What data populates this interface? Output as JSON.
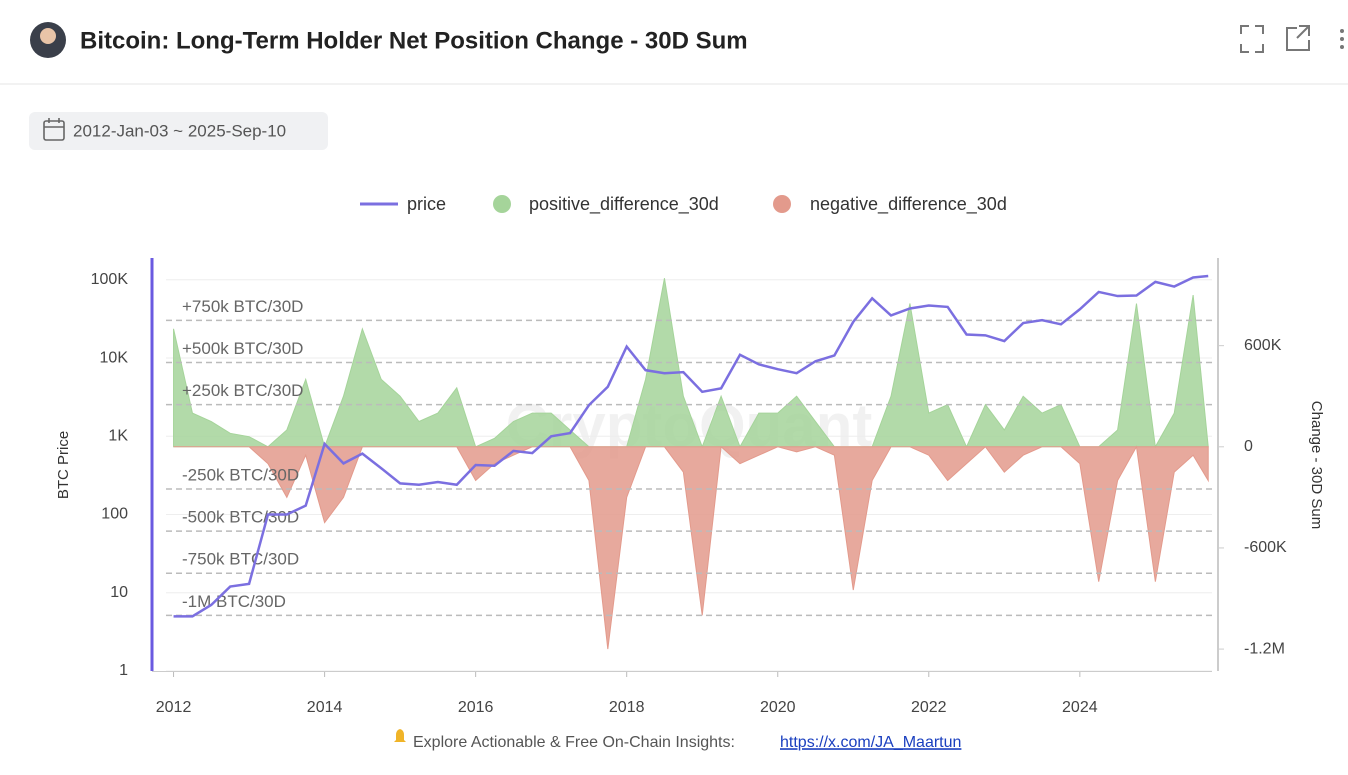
{
  "header": {
    "title": "Bitcoin: Long-Term Holder Net Position Change - 30D Sum"
  },
  "date_range": "2012-Jan-03 ~ 2025-Sep-10",
  "footer": {
    "text": "Explore Actionable & Free On-Chain Insights:",
    "link": "https://x.com/JA_Maartun"
  },
  "chart_data": {
    "type": "combo",
    "watermark": "CryptoQuant",
    "y_label": "BTC Price",
    "y2_label": "Change - 30D Sum",
    "x": [
      2012,
      2012.25,
      2012.5,
      2012.75,
      2013,
      2013.25,
      2013.5,
      2013.75,
      2014,
      2014.25,
      2014.5,
      2014.75,
      2015,
      2015.25,
      2015.5,
      2015.75,
      2016,
      2016.25,
      2016.5,
      2016.75,
      2017,
      2017.25,
      2017.5,
      2017.75,
      2018,
      2018.25,
      2018.5,
      2018.75,
      2019,
      2019.25,
      2019.5,
      2019.75,
      2020,
      2020.25,
      2020.5,
      2020.75,
      2021,
      2021.25,
      2021.5,
      2021.75,
      2022,
      2022.25,
      2022.5,
      2022.75,
      2023,
      2023.25,
      2023.5,
      2023.75,
      2024,
      2024.25,
      2024.5,
      2024.75,
      2025,
      2025.25,
      2025.5,
      2025.7
    ],
    "series": [
      {
        "name": "price",
        "type": "line",
        "axis": "y",
        "color": "#7b6fe0",
        "values": [
          5,
          5,
          7,
          12,
          13,
          100,
          100,
          130,
          800,
          450,
          600,
          390,
          250,
          240,
          260,
          240,
          430,
          420,
          650,
          610,
          1000,
          1100,
          2500,
          4300,
          14000,
          7000,
          6400,
          6600,
          3700,
          4100,
          11000,
          8300,
          7200,
          6400,
          9100,
          10800,
          29000,
          58000,
          35000,
          43000,
          47000,
          45000,
          20000,
          19500,
          16500,
          28000,
          30500,
          27000,
          42000,
          70000,
          62000,
          63000,
          94000,
          82000,
          107000,
          112000
        ]
      },
      {
        "name": "positive_difference_30d",
        "type": "area",
        "axis": "y2",
        "color": "#a5d49a",
        "values": [
          700000,
          200000,
          150000,
          80000,
          60000,
          0,
          100000,
          400000,
          0,
          300000,
          700000,
          400000,
          300000,
          150000,
          200000,
          350000,
          0,
          50000,
          150000,
          200000,
          200000,
          100000,
          0,
          0,
          0,
          400000,
          1000000,
          300000,
          0,
          300000,
          0,
          200000,
          200000,
          300000,
          150000,
          0,
          0,
          0,
          300000,
          850000,
          200000,
          250000,
          0,
          250000,
          100000,
          300000,
          200000,
          250000,
          0,
          0,
          100000,
          850000,
          0,
          200000,
          900000,
          0
        ]
      },
      {
        "name": "negative_difference_30d",
        "type": "area",
        "axis": "y2",
        "color": "#e39a8c",
        "values": [
          0,
          0,
          0,
          0,
          0,
          -100000,
          -300000,
          -50000,
          -450000,
          -300000,
          0,
          0,
          0,
          0,
          0,
          0,
          -200000,
          -100000,
          -50000,
          0,
          0,
          0,
          -200000,
          -1200000,
          -300000,
          0,
          0,
          -150000,
          -1000000,
          0,
          -100000,
          -50000,
          0,
          -30000,
          0,
          -50000,
          -850000,
          -200000,
          0,
          0,
          -50000,
          -200000,
          -100000,
          0,
          -150000,
          -50000,
          0,
          0,
          -100000,
          -800000,
          -200000,
          0,
          -800000,
          -150000,
          -50000,
          -200000
        ]
      }
    ],
    "xlim": [
      2011.9,
      2025.75
    ],
    "xticks": [
      2012,
      2014,
      2016,
      2018,
      2020,
      2022,
      2024
    ],
    "log_y": true,
    "ylim": [
      1,
      190000
    ],
    "yticks": [
      1,
      10,
      100,
      {
        "value": 1000,
        "label": "1K"
      },
      {
        "value": 10000,
        "label": "10K"
      },
      {
        "value": 100000,
        "label": "100K"
      }
    ],
    "y2lim": [
      -1330000,
      1120000
    ],
    "y2ticks": [
      {
        "value": -1200000,
        "label": "-1.2M"
      },
      {
        "value": -600000,
        "label": "-600K"
      },
      0,
      {
        "value": 600000,
        "label": "600K"
      }
    ],
    "annotations": [
      {
        "value": 750000,
        "label": "+750k BTC/30D"
      },
      {
        "value": 500000,
        "label": "+500k BTC/30D"
      },
      {
        "value": 250000,
        "label": "+250k BTC/30D"
      },
      {
        "value": -250000,
        "label": "-250k BTC/30D"
      },
      {
        "value": -500000,
        "label": "-500k BTC/30D"
      },
      {
        "value": -750000,
        "label": "-750k BTC/30D"
      },
      {
        "value": -1000000,
        "label": "-1M BTC/30D"
      }
    ],
    "grid": true,
    "legend": "top"
  }
}
